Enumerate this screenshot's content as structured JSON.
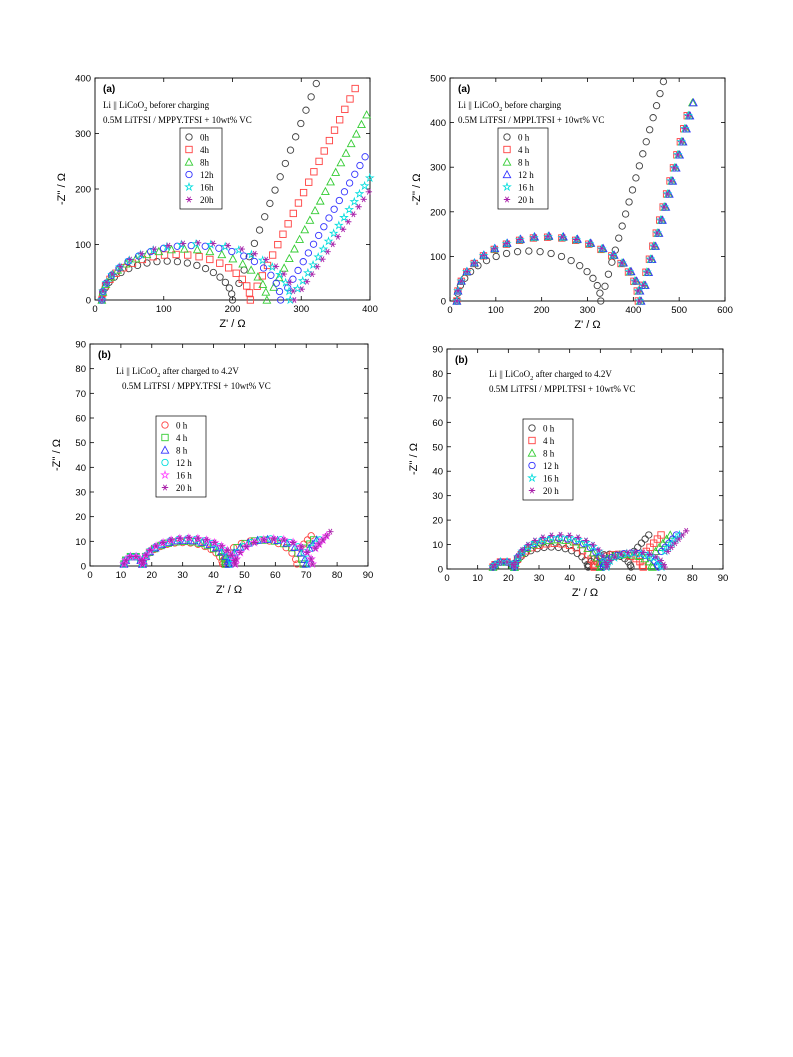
{
  "chart_data": [
    {
      "type": "scatter",
      "panel_label": "(a)",
      "annotation_line1_main": "Li || LiCoO",
      "annotation_line1_sub": "2",
      "annotation_line1_tail": " beforer charging",
      "annotation_line2": "0.5M LiTFSI / MPPY.TFSI + 10wt% VC",
      "xlabel": "Z' / Ω",
      "ylabel": "-Z'' / Ω",
      "xlim": [
        0,
        400
      ],
      "ylim": [
        0,
        400
      ],
      "xticks": [
        "0",
        "100",
        "200",
        "300",
        "400"
      ],
      "yticks": [
        "0",
        "100",
        "200",
        "300",
        "400"
      ],
      "legend_placement": "upper-left-center",
      "series": [
        {
          "name": "0h",
          "color": "#404040",
          "marker": "circle",
          "model": {
            "x0": 10,
            "r": 95,
            "h": 70,
            "tail_slope": 3.2,
            "tail_end": 340
          }
        },
        {
          "name": "4h",
          "color": "#ff4040",
          "marker": "square",
          "model": {
            "x0": 10,
            "r": 108,
            "h": 82,
            "tail_slope": 2.5,
            "tail_end": 385
          }
        },
        {
          "name": "8h",
          "color": "#33cc33",
          "marker": "triangle",
          "model": {
            "x0": 10,
            "r": 120,
            "h": 92,
            "tail_slope": 2.3,
            "tail_end": 400
          }
        },
        {
          "name": "12h",
          "color": "#3333ff",
          "marker": "circle",
          "model": {
            "x0": 10,
            "r": 130,
            "h": 98,
            "tail_slope": 2.1,
            "tail_end": 400
          }
        },
        {
          "name": "16h",
          "color": "#00dddd",
          "marker": "star",
          "model": {
            "x0": 10,
            "r": 137,
            "h": 101,
            "tail_slope": 1.9,
            "tail_end": 400
          }
        },
        {
          "name": "20h",
          "color": "#aa22aa",
          "marker": "asterisk",
          "model": {
            "x0": 10,
            "r": 140,
            "h": 103,
            "tail_slope": 1.8,
            "tail_end": 400
          }
        }
      ]
    },
    {
      "type": "scatter",
      "panel_label": "(a)",
      "annotation_line1_main": "Li || LiCoO",
      "annotation_line1_sub": "2",
      "annotation_line1_tail": " before charging",
      "annotation_line2": "0.5M LiTFSI / MPPI.TFSI + 10wt% VC",
      "xlabel": "Z' / Ω",
      "ylabel": "-Z'' / Ω",
      "xlim": [
        0,
        600
      ],
      "ylim": [
        0,
        500
      ],
      "xticks": [
        "0",
        "100",
        "200",
        "300",
        "400",
        "500",
        "600"
      ],
      "yticks": [
        "0",
        "100",
        "200",
        "300",
        "400",
        "500"
      ],
      "legend_placement": "upper-left",
      "series": [
        {
          "name": "0 h",
          "color": "#404040",
          "marker": "circle",
          "model": {
            "x0": 15,
            "r": 157,
            "h": 112,
            "tail_slope": 3.6,
            "tail_end": 530
          }
        },
        {
          "name": "4 h",
          "color": "#ff4040",
          "marker": "square",
          "model": {
            "x0": 15,
            "r": 198,
            "h": 143,
            "tail_slope": 3.9,
            "tail_end": 525
          }
        },
        {
          "name": "8 h",
          "color": "#33cc33",
          "marker": "triangle",
          "model": {
            "x0": 15,
            "r": 200,
            "h": 145,
            "tail_slope": 3.9,
            "tail_end": 530
          }
        },
        {
          "name": "12 h",
          "color": "#3333ff",
          "marker": "triangle",
          "model": {
            "x0": 15,
            "r": 201,
            "h": 146,
            "tail_slope": 3.9,
            "tail_end": 535
          }
        },
        {
          "name": "16 h",
          "color": "#00dddd",
          "marker": "star",
          "model": {
            "x0": 15,
            "r": 199,
            "h": 144,
            "tail_slope": 3.9,
            "tail_end": 525
          }
        },
        {
          "name": "20 h",
          "color": "#aa22aa",
          "marker": "asterisk",
          "model": {
            "x0": 15,
            "r": 199,
            "h": 145,
            "tail_slope": 3.9,
            "tail_end": 525
          }
        }
      ]
    },
    {
      "type": "scatter",
      "panel_label": "(b)",
      "annotation_line1_main": "Li || LiCoO",
      "annotation_line1_sub": "2",
      "annotation_line1_tail": " after charged to 4.2V",
      "annotation_line2": "0.5M LiTFSI / MPPY.TFSI + 10wt% VC",
      "xlabel": "Z' / Ω",
      "ylabel": "-Z'' / Ω",
      "xlim": [
        0,
        90
      ],
      "ylim": [
        0,
        90
      ],
      "xticks": [
        "0",
        "10",
        "20",
        "30",
        "40",
        "50",
        "60",
        "70",
        "80",
        "90"
      ],
      "yticks": [
        "0",
        "10",
        "20",
        "30",
        "40",
        "50",
        "60",
        "70",
        "80",
        "90"
      ],
      "legend_placement": "upper-left-center",
      "series": [
        {
          "name": "0 h",
          "color": "#ff4040",
          "marker": "circle",
          "model": {
            "x0": 11,
            "s1": 6,
            "s2": 26,
            "s3": 24,
            "h1": 4,
            "h2": 9.5,
            "h3": 10.5,
            "tail_end": 72
          }
        },
        {
          "name": "4 h",
          "color": "#33cc33",
          "marker": "square",
          "model": {
            "x0": 11,
            "s1": 6,
            "s2": 27,
            "s3": 25,
            "h1": 4,
            "h2": 10,
            "h3": 10.5,
            "tail_end": 73
          }
        },
        {
          "name": "8 h",
          "color": "#3333ff",
          "marker": "triangle",
          "model": {
            "x0": 11,
            "s1": 6,
            "s2": 28,
            "s3": 25,
            "h1": 4,
            "h2": 10.5,
            "h3": 10.8,
            "tail_end": 74
          }
        },
        {
          "name": "12 h",
          "color": "#00dddd",
          "marker": "circle",
          "model": {
            "x0": 11,
            "s1": 6,
            "s2": 29,
            "s3": 25,
            "h1": 4,
            "h2": 11,
            "h3": 11,
            "tail_end": 75
          }
        },
        {
          "name": "16 h",
          "color": "#ff44ff",
          "marker": "star",
          "model": {
            "x0": 11,
            "s1": 6,
            "s2": 30,
            "s3": 25,
            "h1": 4,
            "h2": 11.3,
            "h3": 11,
            "tail_end": 77
          }
        },
        {
          "name": "20 h",
          "color": "#aa22aa",
          "marker": "asterisk",
          "model": {
            "x0": 11,
            "s1": 6,
            "s2": 30,
            "s3": 25,
            "h1": 4,
            "h2": 11.5,
            "h3": 11,
            "tail_end": 78
          }
        }
      ]
    },
    {
      "type": "scatter",
      "panel_label": "(b)",
      "annotation_line1_main": "Li || LiCoO",
      "annotation_line1_sub": "2",
      "annotation_line1_tail": " after charged  to 4.2V",
      "annotation_line2": "0.5M LiTFSI / MPPI.TFSI + 10wt% VC",
      "xlabel": "Z' / Ω",
      "ylabel": "-Z'' / Ω",
      "xlim": [
        0,
        90
      ],
      "ylim": [
        0,
        90
      ],
      "xticks": [
        "0",
        "10",
        "20",
        "30",
        "40",
        "50",
        "60",
        "70",
        "80",
        "90"
      ],
      "yticks": [
        "0",
        "10",
        "20",
        "30",
        "40",
        "50",
        "60",
        "70",
        "80",
        "90"
      ],
      "legend_placement": "upper-left",
      "series": [
        {
          "name": "0 h",
          "color": "#404040",
          "marker": "circle",
          "model": {
            "x0": 15,
            "s1": 7,
            "s2": 24,
            "s3": 14,
            "h1": 3,
            "h2": 9,
            "h3": 6,
            "tail_end": 66
          }
        },
        {
          "name": "4 h",
          "color": "#ff4040",
          "marker": "square",
          "model": {
            "x0": 15,
            "s1": 7,
            "s2": 26,
            "s3": 16,
            "h1": 3,
            "h2": 10.5,
            "h3": 6,
            "tail_end": 70
          }
        },
        {
          "name": "8 h",
          "color": "#33cc33",
          "marker": "triangle",
          "model": {
            "x0": 15,
            "s1": 7,
            "s2": 28,
            "s3": 17,
            "h1": 3,
            "h2": 12,
            "h3": 6,
            "tail_end": 73
          }
        },
        {
          "name": "12 h",
          "color": "#3333ff",
          "marker": "circle",
          "model": {
            "x0": 15,
            "s1": 7,
            "s2": 29,
            "s3": 18,
            "h1": 3,
            "h2": 12.5,
            "h3": 6.5,
            "tail_end": 75
          }
        },
        {
          "name": "16 h",
          "color": "#00dddd",
          "marker": "star",
          "model": {
            "x0": 15,
            "s1": 7,
            "s2": 30,
            "s3": 18,
            "h1": 3,
            "h2": 13,
            "h3": 6.5,
            "tail_end": 77
          }
        },
        {
          "name": "20 h",
          "color": "#aa22aa",
          "marker": "asterisk",
          "model": {
            "x0": 15,
            "s1": 7,
            "s2": 30,
            "s3": 19,
            "h1": 3,
            "h2": 14,
            "h3": 7,
            "tail_end": 79
          }
        }
      ]
    }
  ]
}
